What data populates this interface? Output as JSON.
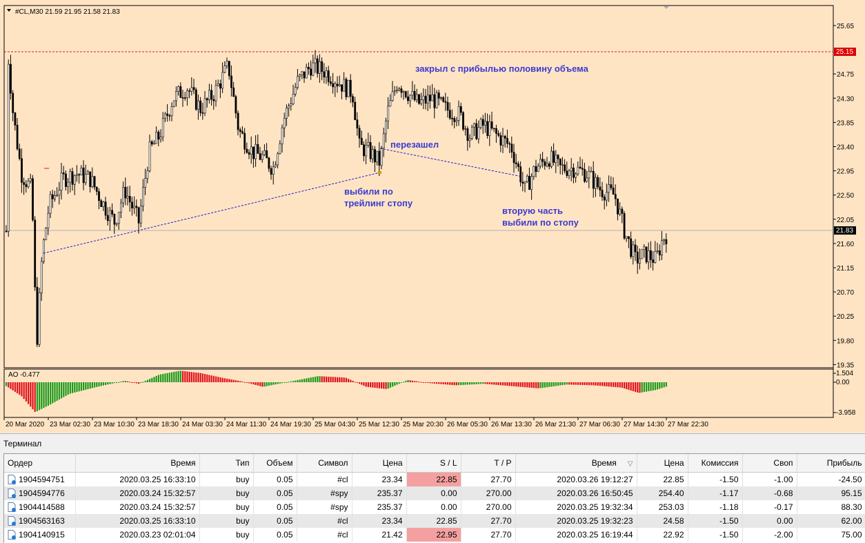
{
  "chart": {
    "header": "#CL,M30  21.59 21.95 21.58 21.83",
    "price_ticks": [
      "25.65",
      "25.15",
      "24.75",
      "24.30",
      "23.85",
      "23.40",
      "22.95",
      "22.50",
      "22.05",
      "21.60",
      "21.15",
      "20.70",
      "20.25",
      "19.80",
      "19.35"
    ],
    "level_red_label": "25.15",
    "current_price_label": "21.83",
    "ao_header": "AO -0.477",
    "ao_ticks": [
      "1.504",
      "0.00",
      "-3.958"
    ],
    "time_labels": [
      "20 Mar 2020",
      "23 Mar 02:30",
      "23 Mar 10:30",
      "23 Mar 18:30",
      "24 Mar 03:30",
      "24 Mar 11:30",
      "24 Mar 19:30",
      "25 Mar 04:30",
      "25 Mar 12:30",
      "25 Mar 20:30",
      "26 Mar 05:30",
      "26 Mar 13:30",
      "26 Mar 21:30",
      "27 Mar 06:30",
      "27 Mar 14:30",
      "27 Mar 22:30"
    ],
    "annotations": {
      "a1": "закрыл с прибылью половину объема",
      "a2": "перезашел",
      "a3_line1": "выбили по",
      "a3_line2": "трейлинг стопу",
      "a4_line1": "вторую часть",
      "a4_line2": "выбили по стопу"
    },
    "colors": {
      "background": "#ffe4c4",
      "bull_ao": "#1a9b1a",
      "bear_ao": "#e0101a",
      "dash_line": "#1a1acc",
      "annotation": "#3a3ad0",
      "level": "#cc2020"
    }
  },
  "terminal": {
    "title": "Терминал",
    "columns": [
      "Ордер",
      "Время",
      "Тип",
      "Объем",
      "Символ",
      "Цена",
      "S / L",
      "T / P",
      "Время",
      "Цена",
      "Комиссия",
      "Своп",
      "Прибыль"
    ],
    "sort_marker": "▽",
    "rows": [
      {
        "order": "1904594751",
        "open_time": "2020.03.25 16:33:10",
        "type": "buy",
        "volume": "0.05",
        "symbol": "#cl",
        "price": "23.34",
        "sl": "22.85",
        "tp": "27.70",
        "close_time": "2020.03.26 19:12:27",
        "close_price": "22.85",
        "commission": "-1.50",
        "swap": "-1.00",
        "profit": "-24.50",
        "sl_hit": true
      },
      {
        "order": "1904594776",
        "open_time": "2020.03.24 15:32:57",
        "type": "buy",
        "volume": "0.05",
        "symbol": "#spy",
        "price": "235.37",
        "sl": "0.00",
        "tp": "270.00",
        "close_time": "2020.03.26 16:50:45",
        "close_price": "254.40",
        "commission": "-1.17",
        "swap": "-0.68",
        "profit": "95.15",
        "sl_hit": false
      },
      {
        "order": "1904414588",
        "open_time": "2020.03.24 15:32:57",
        "type": "buy",
        "volume": "0.05",
        "symbol": "#spy",
        "price": "235.37",
        "sl": "0.00",
        "tp": "270.00",
        "close_time": "2020.03.25 19:32:34",
        "close_price": "253.03",
        "commission": "-1.18",
        "swap": "-0.17",
        "profit": "88.30",
        "sl_hit": false
      },
      {
        "order": "1904563163",
        "open_time": "2020.03.25 16:33:10",
        "type": "buy",
        "volume": "0.05",
        "symbol": "#cl",
        "price": "23.34",
        "sl": "22.85",
        "tp": "27.70",
        "close_time": "2020.03.25 19:32:23",
        "close_price": "24.58",
        "commission": "-1.50",
        "swap": "0.00",
        "profit": "62.00",
        "sl_hit": false
      },
      {
        "order": "1904140915",
        "open_time": "2020.03.23 02:01:04",
        "type": "buy",
        "volume": "0.05",
        "symbol": "#cl",
        "price": "21.42",
        "sl": "22.95",
        "tp": "27.70",
        "close_time": "2020.03.25 16:19:44",
        "close_price": "22.92",
        "commission": "-1.50",
        "swap": "-2.00",
        "profit": "75.00",
        "sl_hit": true
      }
    ]
  }
}
